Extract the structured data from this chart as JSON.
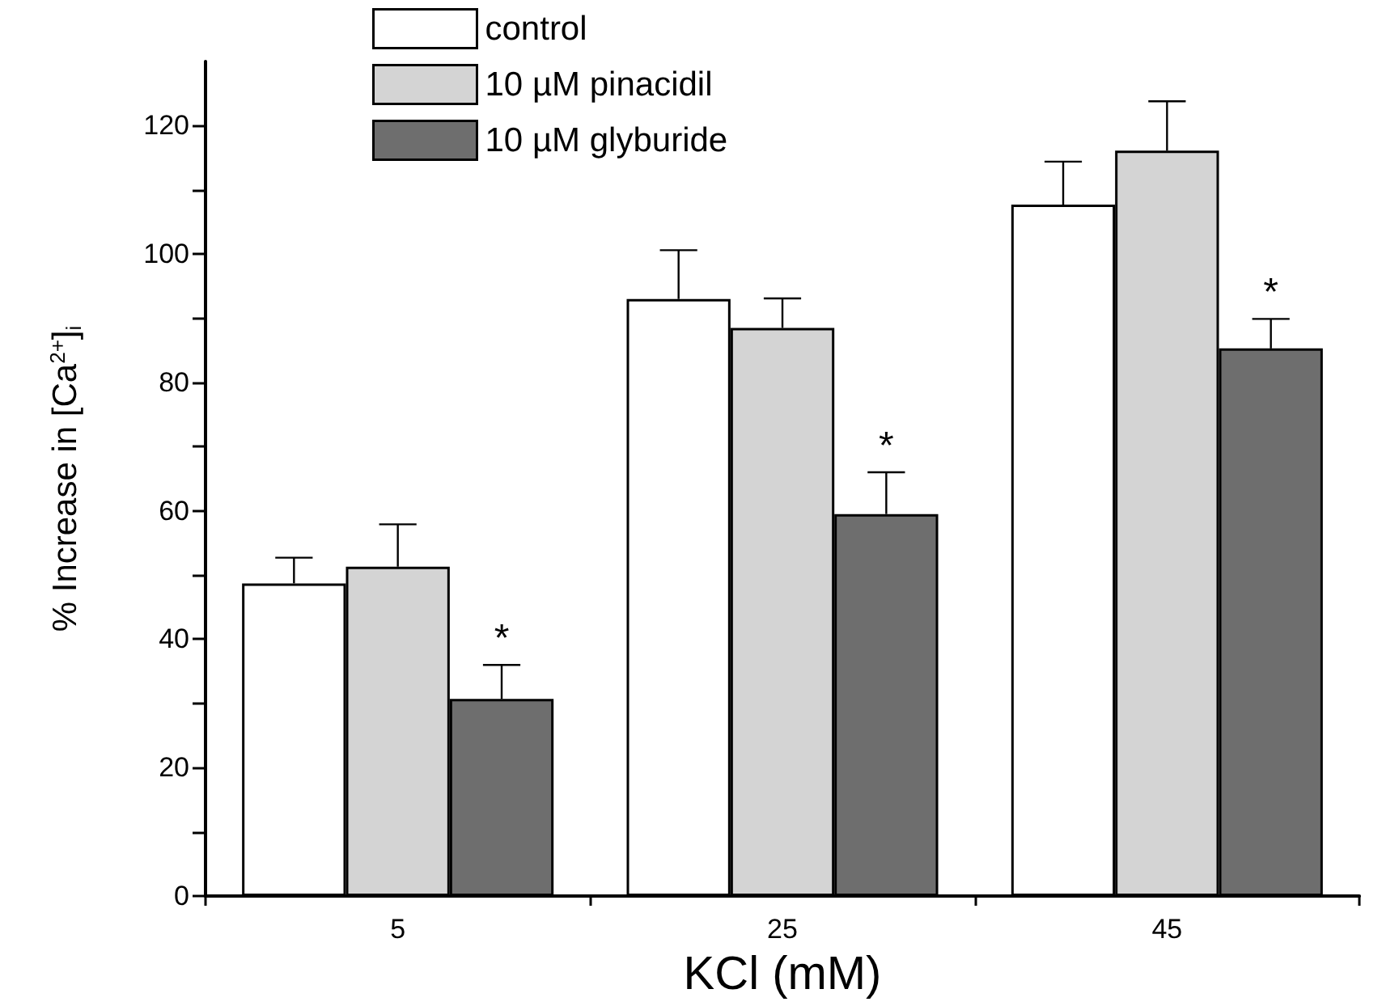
{
  "chart_data": {
    "type": "bar",
    "xlabel": "KCl (mM)",
    "ylabel": "% Increase in [Ca$^{2+}$]$_{i}$",
    "categories": [
      "5",
      "25",
      "45"
    ],
    "series": [
      {
        "name": "control",
        "color": "#ffffff",
        "values": [
          48.7,
          93.0,
          107.7
        ],
        "errors": [
          [
            48.7,
            52.7
          ],
          [
            93.0,
            100.6
          ],
          [
            107.7,
            114.4
          ]
        ]
      },
      {
        "name": "10 µM pinacidil",
        "color": "#d4d4d4",
        "values": [
          51.3,
          88.5,
          116.1
        ],
        "errors": [
          [
            51.3,
            57.9
          ],
          [
            88.5,
            93.1
          ],
          [
            116.1,
            123.8
          ]
        ]
      },
      {
        "name": "10 µM glyburide",
        "color": "#6e6e6e",
        "values": [
          30.7,
          59.5,
          85.3
        ],
        "errors": [
          [
            30.7,
            36.0
          ],
          [
            59.5,
            66.0
          ],
          [
            85.3,
            89.9
          ]
        ]
      }
    ],
    "ylim": [
      0,
      130
    ],
    "yticks": [
      0,
      {
        "value": 10,
        "label": null
      },
      20,
      {
        "value": 30,
        "label": null
      },
      40,
      {
        "value": 50,
        "label": null
      },
      60,
      {
        "value": 70,
        "label": null
      },
      80,
      {
        "value": 90,
        "label": null
      },
      100,
      {
        "value": 110,
        "label": null
      },
      120
    ],
    "annotations": [
      "*",
      "*",
      "*"
    ],
    "legend": "top left",
    "grid": false
  }
}
